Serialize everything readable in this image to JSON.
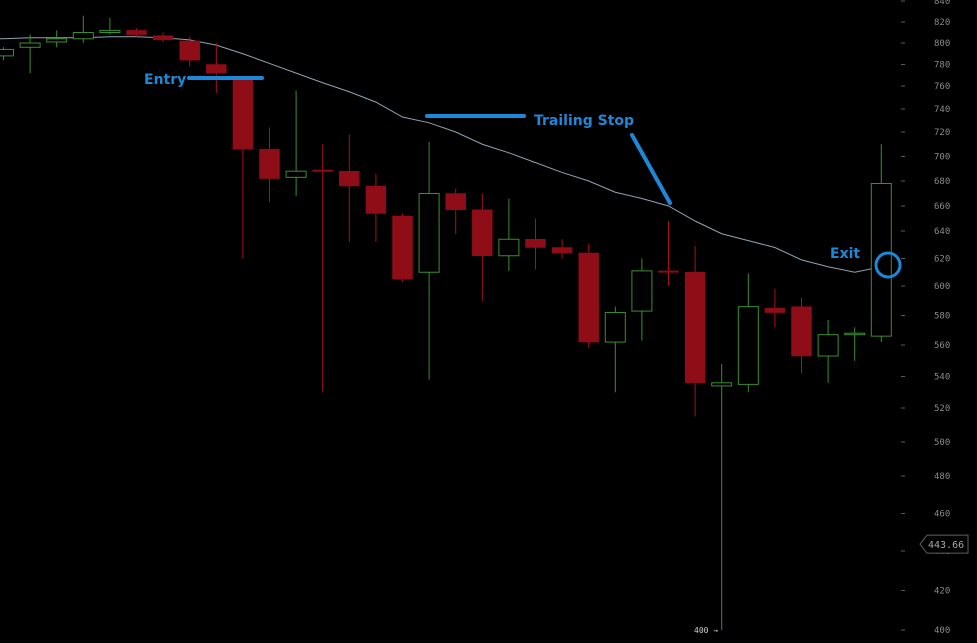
{
  "chart_data": {
    "type": "candlestick",
    "title": "",
    "ylim": [
      400,
      840
    ],
    "y_ticks": [
      840,
      820,
      800,
      780,
      760,
      740,
      720,
      700,
      680,
      660,
      640,
      620,
      600,
      580,
      560,
      540,
      520,
      500,
      480,
      460,
      440,
      420,
      400
    ],
    "tick_labels": [
      "840",
      "820",
      "800",
      "780",
      "760",
      "740",
      "720",
      "700",
      "680",
      "660",
      "640",
      "620",
      "600",
      "580",
      "560",
      "540",
      "520",
      "500",
      "480",
      "460",
      "440",
      "420",
      "400"
    ],
    "grid": false,
    "colors": {
      "up": "#3a8f2e",
      "down": "#8e0d17",
      "down_wick": "#a8101c",
      "moving_average": "#8fa3b3",
      "annotation": "#1e88d8",
      "background": "#000000"
    },
    "series": [
      {
        "type": "candles",
        "values": [
          {
            "o": 788,
            "h": 796,
            "l": 784,
            "c": 794
          },
          {
            "o": 796,
            "h": 808,
            "l": 772,
            "c": 800
          },
          {
            "o": 801,
            "h": 812,
            "l": 796,
            "c": 804
          },
          {
            "o": 804,
            "h": 826,
            "l": 800,
            "c": 810
          },
          {
            "o": 810,
            "h": 824,
            "l": 808,
            "c": 812
          },
          {
            "o": 812,
            "h": 814,
            "l": 806,
            "c": 808
          },
          {
            "o": 807,
            "h": 810,
            "l": 801,
            "c": 803
          },
          {
            "o": 802,
            "h": 806,
            "l": 778,
            "c": 784
          },
          {
            "o": 780,
            "h": 800,
            "l": 754,
            "c": 772
          },
          {
            "o": 767,
            "h": 768,
            "l": 620,
            "c": 706
          },
          {
            "o": 706,
            "h": 724,
            "l": 663,
            "c": 682
          },
          {
            "o": 683,
            "h": 756,
            "l": 668,
            "c": 688
          },
          {
            "o": 689,
            "h": 710,
            "l": 530,
            "c": 688
          },
          {
            "o": 688,
            "h": 718,
            "l": 632,
            "c": 676
          },
          {
            "o": 676,
            "h": 686,
            "l": 632,
            "c": 654
          },
          {
            "o": 652,
            "h": 654,
            "l": 603,
            "c": 605
          },
          {
            "o": 610,
            "h": 712,
            "l": 538,
            "c": 670
          },
          {
            "o": 670,
            "h": 674,
            "l": 638,
            "c": 657
          },
          {
            "o": 657,
            "h": 670,
            "l": 590,
            "c": 622
          },
          {
            "o": 622,
            "h": 666,
            "l": 611,
            "c": 634
          },
          {
            "o": 634,
            "h": 650,
            "l": 612,
            "c": 628
          },
          {
            "o": 628,
            "h": 634,
            "l": 620,
            "c": 624
          },
          {
            "o": 624,
            "h": 631,
            "l": 558,
            "c": 562
          },
          {
            "o": 562,
            "h": 586,
            "l": 530,
            "c": 582
          },
          {
            "o": 583,
            "h": 620,
            "l": 563,
            "c": 611
          },
          {
            "o": 611,
            "h": 648,
            "l": 600,
            "c": 610
          },
          {
            "o": 610,
            "h": 629,
            "l": 515,
            "c": 536
          },
          {
            "o": 534,
            "h": 548,
            "l": 400,
            "c": 536
          },
          {
            "o": 535,
            "h": 609,
            "l": 530,
            "c": 586
          },
          {
            "o": 585,
            "h": 598,
            "l": 572,
            "c": 582
          },
          {
            "o": 586,
            "h": 592,
            "l": 542,
            "c": 553
          },
          {
            "o": 553,
            "h": 577,
            "l": 536,
            "c": 567
          },
          {
            "o": 568,
            "h": 572,
            "l": 550,
            "c": 568
          },
          {
            "o": 566,
            "h": 710,
            "l": 562,
            "c": 678
          }
        ]
      },
      {
        "type": "line",
        "values": [
          804,
          805,
          805,
          805,
          806,
          806,
          805,
          803,
          798,
          790,
          781,
          772,
          763,
          755,
          746,
          733,
          728,
          720,
          710,
          703,
          695,
          687,
          680,
          671,
          666,
          660,
          648,
          638,
          633,
          628,
          619,
          614,
          610,
          614
        ]
      }
    ],
    "annotations": [
      "Entry",
      "Trailing Stop",
      "Exit"
    ],
    "price_badge": "443.66",
    "low_label": "400 →"
  }
}
